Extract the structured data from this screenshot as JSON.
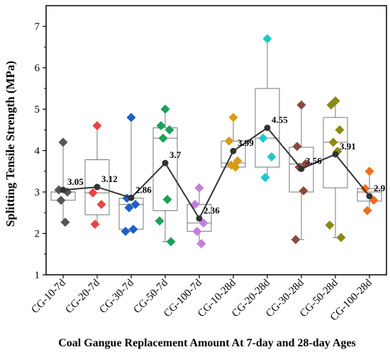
{
  "chart_data": {
    "type": "box",
    "ylabel": "Splitting Tensile Strength (MPa)",
    "xlabel": "Coal Gangue Replacement Amount At 7-day and 28-day Ages",
    "ylim": [
      1,
      7.5
    ],
    "yticks": [
      1,
      2,
      3,
      4,
      5,
      6,
      7
    ],
    "categories": [
      "CG-10-7d",
      "CG-20-7d",
      "CG-30-7d",
      "CG-50-7d",
      "CG-100-7d",
      "CG-10-28d",
      "CG-20-28d",
      "CG-30-28d",
      "CG-50-28d",
      "CG-100-28d"
    ],
    "colors": [
      "#555555",
      "#e84545",
      "#1f5fc8",
      "#1aa15a",
      "#c47be0",
      "#d99a18",
      "#1ec8cc",
      "#8a4a40",
      "#8a8a10",
      "#f26b1d"
    ],
    "mean_series": {
      "values": [
        3.05,
        3.12,
        2.86,
        3.7,
        2.36,
        3.99,
        4.55,
        3.56,
        3.91,
        2.9
      ],
      "labels": [
        "3.05",
        "3.12",
        "2.86",
        "3.7",
        "2.36",
        "3.99",
        "4.55",
        "3.56",
        "3.91",
        "2.9"
      ]
    },
    "boxes": [
      {
        "whisker_low": 2.27,
        "q1": 2.8,
        "median": 3.0,
        "q3": 3.0,
        "whisker_high": 4.2
      },
      {
        "whisker_low": 2.22,
        "q1": 2.45,
        "median": 2.98,
        "q3": 3.78,
        "whisker_high": 4.6
      },
      {
        "whisker_low": 2.05,
        "q1": 2.1,
        "median": 2.7,
        "q3": 2.85,
        "whisker_high": 4.8
      },
      {
        "whisker_low": 1.8,
        "q1": 2.55,
        "median": 4.3,
        "q3": 4.55,
        "whisker_high": 5.0
      },
      {
        "whisker_low": 1.75,
        "q1": 2.05,
        "median": 2.25,
        "q3": 2.7,
        "whisker_high": 3.1
      },
      {
        "whisker_low": 3.6,
        "q1": 3.6,
        "median": 3.7,
        "q3": 4.23,
        "whisker_high": 4.8
      },
      {
        "whisker_low": 3.35,
        "q1": 3.6,
        "median": 4.3,
        "q3": 5.5,
        "whisker_high": 6.7
      },
      {
        "whisker_low": 1.85,
        "q1": 3.0,
        "median": 3.68,
        "q3": 4.08,
        "whisker_high": 5.1
      },
      {
        "whisker_low": 1.9,
        "q1": 3.1,
        "median": 4.2,
        "q3": 4.8,
        "whisker_high": 5.2
      },
      {
        "whisker_low": 2.55,
        "q1": 2.78,
        "median": 3.0,
        "q3": 3.08,
        "whisker_high": 3.5
      }
    ],
    "points": [
      [
        4.2,
        3.05,
        3.0,
        2.8,
        2.27
      ],
      [
        4.6,
        2.98,
        2.7,
        2.22
      ],
      [
        4.8,
        2.85,
        2.7,
        2.62,
        2.1,
        2.05
      ],
      [
        5.0,
        4.6,
        4.5,
        4.3,
        2.82,
        2.3,
        1.8
      ],
      [
        3.1,
        2.7,
        2.25,
        2.05,
        1.75
      ],
      [
        4.8,
        4.23,
        3.75,
        3.65,
        3.6
      ],
      [
        6.7,
        4.3,
        3.85,
        3.35
      ],
      [
        5.1,
        4.1,
        3.68,
        3.6,
        3.03,
        1.85
      ],
      [
        5.2,
        5.1,
        4.5,
        4.2,
        3.98,
        2.2,
        1.9
      ],
      [
        3.5,
        3.08,
        2.8,
        2.55
      ]
    ],
    "grid": false,
    "legend": "none"
  }
}
